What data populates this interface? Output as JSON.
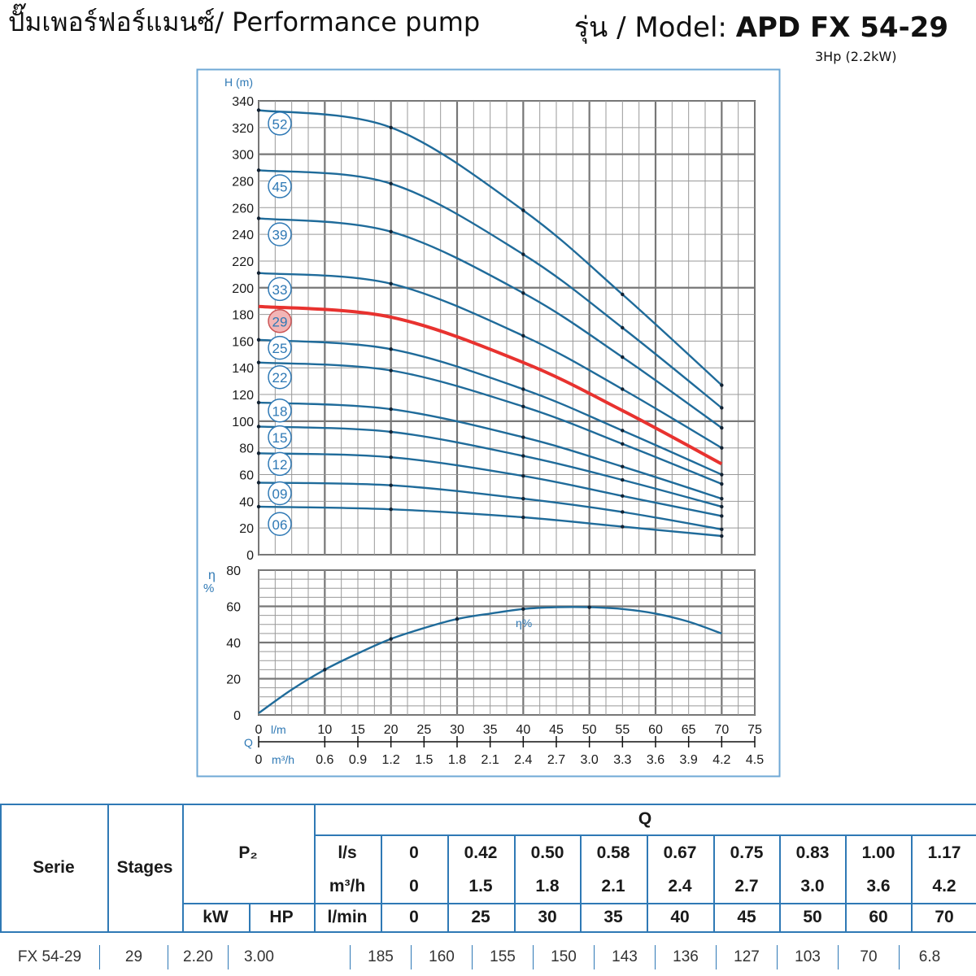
{
  "header": {
    "title_left": "ปั๊มเพอร์ฟอร์แมนซ์/ Performance pump",
    "model_prefix": "รุ่น / Model: ",
    "model_name": "APD FX 54-29",
    "power": "3Hp (2.2kW)"
  },
  "chart_data": [
    {
      "type": "line",
      "ylabel": "H (m)",
      "xlabel_primary": "l/m",
      "xlabel_secondary": "m³/h",
      "x_axis_symbol": "Q",
      "xlim": [
        0,
        75
      ],
      "ylim": [
        0,
        340
      ],
      "xticks": [
        0,
        10,
        15,
        20,
        25,
        30,
        35,
        40,
        45,
        50,
        55,
        60,
        65,
        70,
        75
      ],
      "xticks_secondary": [
        "0",
        "0.6",
        "0.9",
        "1.2",
        "1.5",
        "1.8",
        "2.1",
        "2.4",
        "2.7",
        "3.0",
        "3.3",
        "3.6",
        "3.9",
        "4.2",
        "4.5"
      ],
      "yticks": [
        0,
        20,
        40,
        60,
        80,
        100,
        120,
        140,
        160,
        180,
        200,
        220,
        240,
        260,
        280,
        300,
        320,
        340
      ],
      "grid": true,
      "highlight_color": "#e8322f",
      "curve_color": "#1f6b9a",
      "series": [
        {
          "name": "52",
          "highlight": false,
          "label_y": 323,
          "points": [
            [
              0,
              333
            ],
            [
              20,
              320
            ],
            [
              40,
              258
            ],
            [
              55,
              195
            ],
            [
              70,
              127
            ]
          ]
        },
        {
          "name": "45",
          "highlight": false,
          "label_y": 276,
          "points": [
            [
              0,
              288
            ],
            [
              20,
              278
            ],
            [
              40,
              225
            ],
            [
              55,
              170
            ],
            [
              70,
              110
            ]
          ]
        },
        {
          "name": "39",
          "highlight": false,
          "label_y": 240,
          "points": [
            [
              0,
              252
            ],
            [
              20,
              242
            ],
            [
              40,
              196
            ],
            [
              55,
              148
            ],
            [
              70,
              95
            ]
          ]
        },
        {
          "name": "33",
          "highlight": false,
          "label_y": 199,
          "points": [
            [
              0,
              211
            ],
            [
              20,
              203
            ],
            [
              40,
              164
            ],
            [
              55,
              124
            ],
            [
              70,
              80
            ]
          ]
        },
        {
          "name": "29",
          "highlight": true,
          "label_y": 175,
          "points": [
            [
              0,
              186
            ],
            [
              20,
              178
            ],
            [
              40,
              144
            ],
            [
              55,
              108
            ],
            [
              70,
              68
            ]
          ]
        },
        {
          "name": "25",
          "highlight": false,
          "label_y": 155,
          "points": [
            [
              0,
              161
            ],
            [
              20,
              154
            ],
            [
              40,
              124
            ],
            [
              55,
              93
            ],
            [
              70,
              60
            ]
          ]
        },
        {
          "name": "22",
          "highlight": false,
          "label_y": 133,
          "points": [
            [
              0,
              144
            ],
            [
              20,
              138
            ],
            [
              40,
              111
            ],
            [
              55,
              83
            ],
            [
              70,
              53
            ]
          ]
        },
        {
          "name": "18",
          "highlight": false,
          "label_y": 108,
          "points": [
            [
              0,
              114
            ],
            [
              20,
              109
            ],
            [
              40,
              88
            ],
            [
              55,
              66
            ],
            [
              70,
              42
            ]
          ]
        },
        {
          "name": "15",
          "highlight": false,
          "label_y": 88,
          "points": [
            [
              0,
              96
            ],
            [
              20,
              92
            ],
            [
              40,
              74
            ],
            [
              55,
              56
            ],
            [
              70,
              36
            ]
          ]
        },
        {
          "name": "12",
          "highlight": false,
          "label_y": 68,
          "points": [
            [
              0,
              76
            ],
            [
              20,
              73
            ],
            [
              40,
              59
            ],
            [
              55,
              44
            ],
            [
              70,
              29
            ]
          ]
        },
        {
          "name": "09",
          "highlight": false,
          "label_y": 46,
          "points": [
            [
              0,
              54
            ],
            [
              20,
              52
            ],
            [
              40,
              42
            ],
            [
              55,
              32
            ],
            [
              70,
              19
            ]
          ]
        },
        {
          "name": "06",
          "highlight": false,
          "label_y": 23,
          "points": [
            [
              0,
              36
            ],
            [
              20,
              34
            ],
            [
              40,
              28
            ],
            [
              55,
              21
            ],
            [
              70,
              14
            ]
          ]
        }
      ]
    },
    {
      "type": "line",
      "ylabel": "η %",
      "xlim": [
        0,
        75
      ],
      "ylim": [
        0,
        80
      ],
      "yticks": [
        0,
        20,
        40,
        60,
        80
      ],
      "grid": true,
      "series": [
        {
          "name": "η%",
          "points": [
            [
              0,
              1
            ],
            [
              5,
              14
            ],
            [
              10,
              25
            ],
            [
              15,
              34
            ],
            [
              20,
              42
            ],
            [
              25,
              48
            ],
            [
              30,
              53
            ],
            [
              35,
              56
            ],
            [
              40,
              58.5
            ],
            [
              45,
              59.5
            ],
            [
              50,
              59.5
            ],
            [
              55,
              58.5
            ],
            [
              60,
              56
            ],
            [
              65,
              51.5
            ],
            [
              70,
              45
            ]
          ]
        }
      ]
    }
  ],
  "table": {
    "header": {
      "serie": "Serie",
      "stages": "Stages",
      "p2": "P₂",
      "kw": "kW",
      "hp": "HP",
      "q": "Q",
      "ls_label": "l/s",
      "m3h_label": "m³/h",
      "lmin_label": "l/min",
      "ls": [
        "0",
        "0.42",
        "0.50",
        "0.58",
        "0.67",
        "0.75",
        "0.83",
        "1.00",
        "1.17"
      ],
      "m3h": [
        "0",
        "1.5",
        "1.8",
        "2.1",
        "2.4",
        "2.7",
        "3.0",
        "3.6",
        "4.2"
      ],
      "lmin": [
        "0",
        "25",
        "30",
        "35",
        "40",
        "45",
        "50",
        "60",
        "70"
      ]
    },
    "row": {
      "serie": "FX 54-29",
      "stages": "29",
      "kw": "2.20",
      "hp": "3.00",
      "heads": [
        "185",
        "160",
        "155",
        "150",
        "143",
        "136",
        "127",
        "103",
        "70",
        "6.8"
      ]
    }
  }
}
